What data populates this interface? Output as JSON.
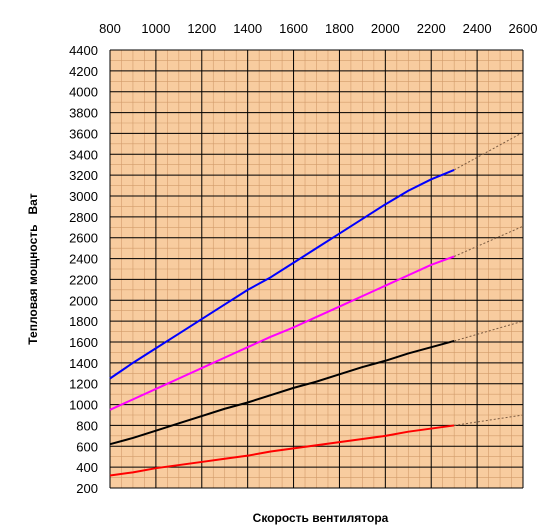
{
  "chart_data": {
    "type": "line",
    "title": "",
    "xlabel": "Скорость вентилятора",
    "ylabel": "Тепловая мощность   Ват",
    "xlim": [
      800,
      2600
    ],
    "ylim": [
      200,
      4400
    ],
    "x_ticks": [
      "800",
      "1000",
      "1200",
      "1400",
      "1600",
      "1800",
      "2000",
      "2200",
      "2400",
      "2600"
    ],
    "y_ticks": [
      "200",
      "400",
      "600",
      "800",
      "1000",
      "1200",
      "1400",
      "1600",
      "1800",
      "2000",
      "2200",
      "2400",
      "2600",
      "2800",
      "3000",
      "3200",
      "3400",
      "3600",
      "3800",
      "4000",
      "4200",
      "4400"
    ],
    "x_axis_position": "top",
    "grid": true,
    "minor_grid_x_step": 50,
    "minor_grid_y_step": 100,
    "legend": "none",
    "colors": {
      "plot_background": "#f8cc9f",
      "major_grid": "#000000",
      "minor_grid": "#d29b6b"
    },
    "series": [
      {
        "color": "#0000ff",
        "x": [
          800,
          900,
          1000,
          1100,
          1200,
          1300,
          1400,
          1500,
          1600,
          1700,
          1800,
          1900,
          2000,
          2100,
          2200,
          2300
        ],
        "values": [
          1250,
          1400,
          1540,
          1680,
          1820,
          1960,
          2100,
          2220,
          2360,
          2500,
          2640,
          2780,
          2920,
          3050,
          3160,
          3250
        ],
        "extrapolation": {
          "x": [
            2300,
            2600
          ],
          "values": [
            3250,
            3610
          ]
        }
      },
      {
        "color": "#ff00ff",
        "x": [
          800,
          900,
          1000,
          1100,
          1200,
          1300,
          1400,
          1500,
          1600,
          1700,
          1800,
          1900,
          2000,
          2100,
          2200,
          2300
        ],
        "values": [
          950,
          1050,
          1150,
          1250,
          1350,
          1450,
          1550,
          1650,
          1740,
          1840,
          1940,
          2040,
          2140,
          2240,
          2340,
          2420
        ],
        "extrapolation": {
          "x": [
            2300,
            2600
          ],
          "values": [
            2420,
            2710
          ]
        }
      },
      {
        "color": "#000000",
        "x": [
          800,
          900,
          1000,
          1100,
          1200,
          1300,
          1400,
          1500,
          1600,
          1700,
          1800,
          1900,
          2000,
          2100,
          2200,
          2300
        ],
        "values": [
          620,
          680,
          750,
          820,
          890,
          960,
          1020,
          1090,
          1160,
          1220,
          1290,
          1360,
          1420,
          1490,
          1550,
          1610
        ],
        "extrapolation": {
          "x": [
            2300,
            2600
          ],
          "values": [
            1610,
            1800
          ]
        }
      },
      {
        "color": "#ff0000",
        "x": [
          800,
          900,
          1000,
          1100,
          1200,
          1300,
          1400,
          1500,
          1600,
          1700,
          1800,
          1900,
          2000,
          2100,
          2200,
          2300
        ],
        "values": [
          320,
          350,
          390,
          420,
          450,
          480,
          510,
          550,
          580,
          610,
          640,
          670,
          700,
          740,
          770,
          800
        ],
        "extrapolation": {
          "x": [
            2300,
            2600
          ],
          "values": [
            800,
            900
          ]
        }
      }
    ]
  }
}
